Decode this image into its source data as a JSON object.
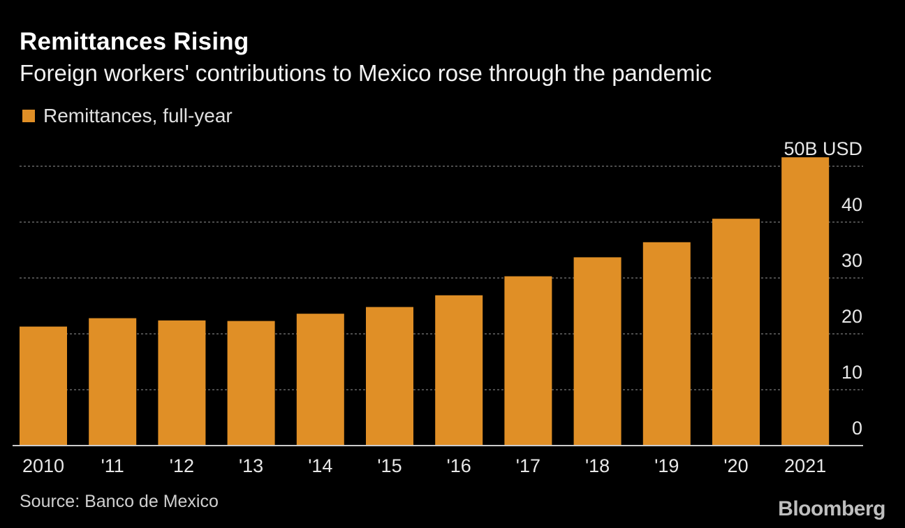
{
  "header": {
    "title": "Remittances Rising",
    "subtitle": "Foreign workers' contributions to Mexico rose through the pandemic"
  },
  "footer": {
    "source": "Source: Banco de Mexico",
    "brand": "Bloomberg"
  },
  "colors": {
    "bar": "#e08f26",
    "grid": "#666666",
    "axis": "#cccccc"
  },
  "chart_data": {
    "type": "bar",
    "categories": [
      "2010",
      "'11",
      "'12",
      "'13",
      "'14",
      "'15",
      "'16",
      "'17",
      "'18",
      "'19",
      "'20",
      "2021"
    ],
    "series": [
      {
        "name": "Remittances, full-year",
        "values": [
          21.3,
          22.8,
          22.4,
          22.3,
          23.6,
          24.8,
          26.9,
          30.3,
          33.7,
          36.4,
          40.6,
          51.6
        ]
      }
    ],
    "y_ticks": [
      "0",
      "10",
      "20",
      "30",
      "40",
      "50B USD"
    ],
    "ylim": [
      0,
      50
    ],
    "y_axis_side": "right",
    "grid": "horizontal dotted",
    "legend_position": "top-left"
  }
}
